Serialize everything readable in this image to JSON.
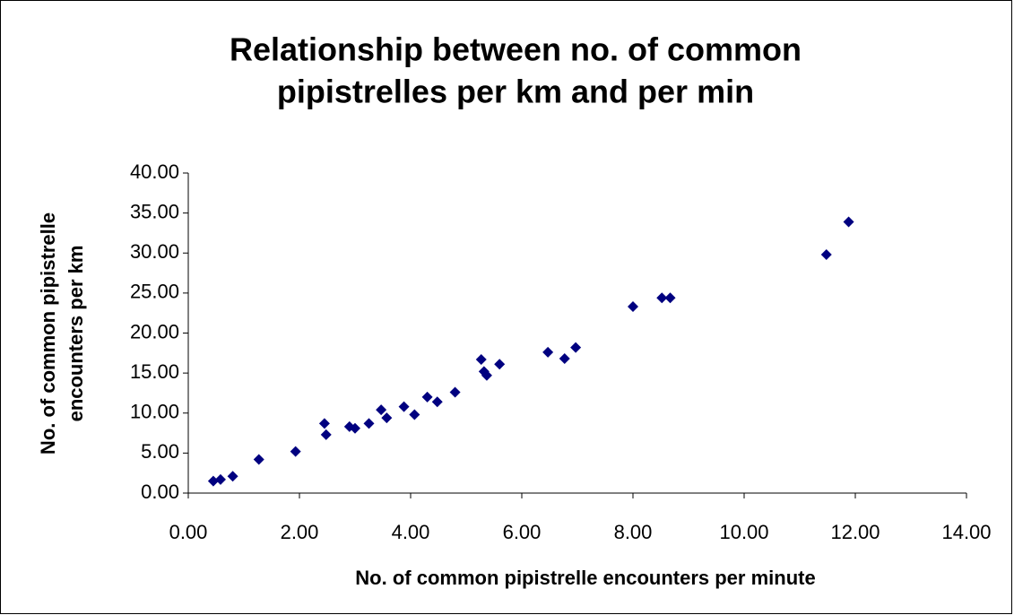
{
  "chart_data": {
    "type": "scatter",
    "title": [
      "Relationship between no. of common",
      "pipistrelles per km and per min"
    ],
    "x_label": "No. of common pipistrelle encounters per minute",
    "y_label": [
      "No. of common pipistrelle",
      "encounters per km"
    ],
    "color": "#000080",
    "x": [
      0.45,
      0.58,
      0.8,
      1.27,
      1.93,
      2.45,
      2.48,
      2.9,
      3.0,
      3.25,
      3.47,
      3.57,
      3.88,
      4.07,
      4.3,
      4.48,
      4.8,
      5.27,
      5.32,
      5.37,
      5.6,
      6.47,
      6.77,
      6.97,
      8.0,
      8.52,
      8.67,
      11.48,
      11.88
    ],
    "values": [
      1.5,
      1.7,
      2.1,
      4.2,
      5.2,
      8.7,
      7.3,
      8.3,
      8.1,
      8.7,
      10.4,
      9.4,
      10.8,
      9.8,
      12.0,
      11.4,
      12.6,
      16.7,
      15.2,
      14.7,
      16.1,
      17.6,
      16.8,
      18.2,
      23.3,
      24.4,
      24.4,
      29.8,
      33.9
    ],
    "xlim": [
      0,
      14
    ],
    "ylim": [
      0,
      40
    ],
    "xticks": [
      {
        "value": 0,
        "label": "0.00"
      },
      {
        "value": 2,
        "label": "2.00"
      },
      {
        "value": 4,
        "label": "4.00"
      },
      {
        "value": 6,
        "label": "6.00"
      },
      {
        "value": 8,
        "label": "8.00"
      },
      {
        "value": 10,
        "label": "10.00"
      },
      {
        "value": 12,
        "label": "12.00"
      },
      {
        "value": 14,
        "label": "14.00"
      }
    ],
    "yticks": [
      {
        "value": 0,
        "label": "0.00"
      },
      {
        "value": 5,
        "label": "5.00"
      },
      {
        "value": 10,
        "label": "10.00"
      },
      {
        "value": 15,
        "label": "15.00"
      },
      {
        "value": 20,
        "label": "20.00"
      },
      {
        "value": 25,
        "label": "25.00"
      },
      {
        "value": 30,
        "label": "30.00"
      },
      {
        "value": 35,
        "label": "35.00"
      },
      {
        "value": 40,
        "label": "40.00"
      }
    ]
  }
}
